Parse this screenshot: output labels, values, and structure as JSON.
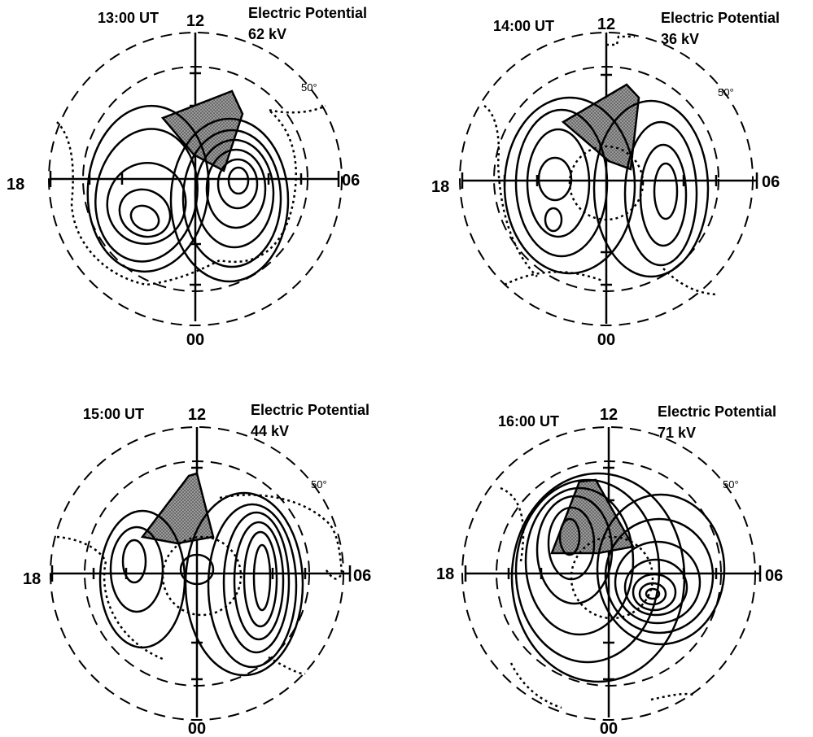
{
  "figure": {
    "panels": [
      {
        "time": "13:00 UT",
        "title_line1": "Electric Potential",
        "title_line2": "62 kV",
        "latitude_label": "50°",
        "mlt_labels": {
          "top": "12",
          "bottom": "00",
          "left": "18",
          "right": "06"
        }
      },
      {
        "time": "14:00 UT",
        "title_line1": "Electric Potential",
        "title_line2": "36  kV",
        "latitude_label": "50°",
        "mlt_labels": {
          "top": "12",
          "bottom": "00",
          "left": "18",
          "right": "06"
        }
      },
      {
        "time": "15:00 UT",
        "title_line1": "Electric Potential",
        "title_line2": "44 kV",
        "latitude_label": "50°",
        "mlt_labels": {
          "top": "12",
          "bottom": "00",
          "left": "18",
          "right": "06"
        }
      },
      {
        "time": "16:00 UT",
        "title_line1": "Electric Potential",
        "title_line2": "71 kV",
        "latitude_label": "50°",
        "mlt_labels": {
          "top": "12",
          "bottom": "00",
          "left": "18",
          "right": "06"
        }
      }
    ],
    "colors": {
      "ink": "#000000",
      "shade": "#8a8a8a",
      "background": "#ffffff"
    }
  }
}
